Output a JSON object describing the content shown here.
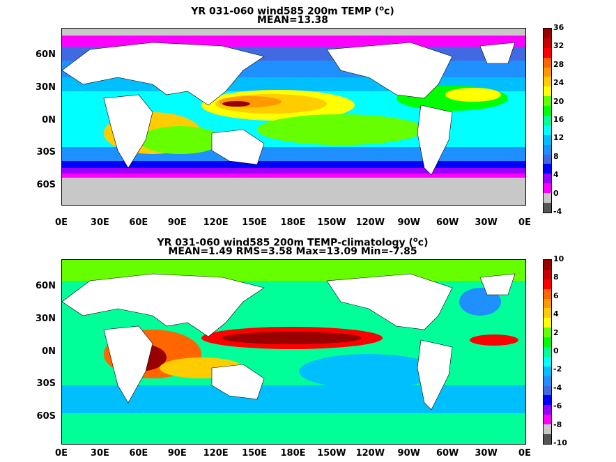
{
  "top": {
    "title_line1": "YR 031-060 wind585 200m TEMP (",
    "title_sup": "o",
    "title_line1_end": "c)",
    "title_line2": "MEAN=13.38",
    "colorbar_ticks": [
      "36",
      "32",
      "28",
      "24",
      "20",
      "16",
      "12",
      "8",
      "4",
      "0",
      "-4"
    ],
    "colorbar_colors": [
      "#555555",
      "#c8c8c8",
      "#ff00ff",
      "#9900ff",
      "#0000ff",
      "#4169e1",
      "#1e90ff",
      "#00bfff",
      "#00ffff",
      "#00ff99",
      "#00ff00",
      "#66ff00",
      "#ffff00",
      "#ffcc00",
      "#ff9900",
      "#ff6600",
      "#ff0000",
      "#cc0000",
      "#990000"
    ]
  },
  "bottom": {
    "title_line1": "YR 031-060 wind585 200m TEMP-climatology (",
    "title_sup": "o",
    "title_line1_end": "c)",
    "title_line2": "MEAN=1.49   RMS=3.58   Max=13.09   Min=-7.85",
    "colorbar_ticks": [
      "10",
      "8",
      "6",
      "4",
      "2",
      "0",
      "-2",
      "-4",
      "-6",
      "-8",
      "-10"
    ]
  },
  "axes": {
    "lat_labels": [
      "60N",
      "30N",
      "0N",
      "30S",
      "60S"
    ],
    "lon_labels": [
      "0E",
      "30E",
      "60E",
      "90E",
      "120E",
      "150E",
      "180E",
      "150W",
      "120W",
      "90W",
      "60W",
      "30W",
      "0E"
    ]
  },
  "colors": {
    "land": "#ffffff",
    "ice": "#c8c8c8",
    "coast": "#000000"
  }
}
